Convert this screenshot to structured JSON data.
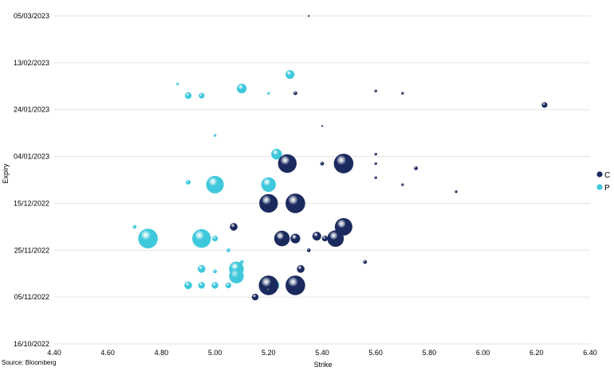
{
  "chart_data": {
    "type": "scatter",
    "variant": "bubble",
    "xlabel": "Strike",
    "ylabel": "Expiry",
    "source": "Source: Bloomberg",
    "xlim": [
      4.4,
      6.4
    ],
    "x_ticks": [
      "4.40",
      "4.60",
      "4.80",
      "5.00",
      "5.20",
      "5.40",
      "5.60",
      "5.80",
      "6.00",
      "6.20",
      "6.40"
    ],
    "ylim": [
      "2022-10-16",
      "2023-03-05"
    ],
    "y_ticks": [
      "16/10/2022",
      "05/11/2022",
      "25/11/2022",
      "15/12/2022",
      "04/01/2023",
      "24/01/2023",
      "13/02/2023",
      "05/03/2023"
    ],
    "grid": "horizontal",
    "legend_position": "right",
    "colors": {
      "C": "#1b2a5e",
      "P": "#3fc8dc",
      "grid": "#e3e3e3"
    },
    "series": [
      {
        "name": "C",
        "points": [
          {
            "x": 5.35,
            "y": "2023-03-05",
            "size": 1
          },
          {
            "x": 5.3,
            "y": "2023-01-31",
            "size": 3
          },
          {
            "x": 5.6,
            "y": "2023-02-01",
            "size": 2
          },
          {
            "x": 5.7,
            "y": "2023-01-31",
            "size": 2
          },
          {
            "x": 6.23,
            "y": "2023-01-26",
            "size": 5
          },
          {
            "x": 5.4,
            "y": "2023-01-17",
            "size": 1
          },
          {
            "x": 5.6,
            "y": "2023-01-05",
            "size": 2
          },
          {
            "x": 5.27,
            "y": "2023-01-01",
            "size": 18
          },
          {
            "x": 5.48,
            "y": "2023-01-01",
            "size": 19
          },
          {
            "x": 5.4,
            "y": "2023-01-01",
            "size": 3
          },
          {
            "x": 5.6,
            "y": "2023-01-01",
            "size": 2
          },
          {
            "x": 5.75,
            "y": "2022-12-30",
            "size": 3
          },
          {
            "x": 5.6,
            "y": "2022-12-26",
            "size": 2
          },
          {
            "x": 5.7,
            "y": "2022-12-23",
            "size": 2
          },
          {
            "x": 5.9,
            "y": "2022-12-20",
            "size": 2
          },
          {
            "x": 5.2,
            "y": "2022-12-15",
            "size": 18
          },
          {
            "x": 5.3,
            "y": "2022-12-15",
            "size": 19
          },
          {
            "x": 5.48,
            "y": "2022-12-05",
            "size": 17
          },
          {
            "x": 5.07,
            "y": "2022-12-05",
            "size": 7
          },
          {
            "x": 5.25,
            "y": "2022-11-30",
            "size": 15
          },
          {
            "x": 5.3,
            "y": "2022-11-30",
            "size": 9
          },
          {
            "x": 5.45,
            "y": "2022-11-30",
            "size": 16
          },
          {
            "x": 5.38,
            "y": "2022-12-01",
            "size": 8
          },
          {
            "x": 5.41,
            "y": "2022-11-30",
            "size": 5
          },
          {
            "x": 5.35,
            "y": "2022-11-25",
            "size": 3
          },
          {
            "x": 5.56,
            "y": "2022-11-20",
            "size": 3
          },
          {
            "x": 5.2,
            "y": "2022-11-10",
            "size": 19
          },
          {
            "x": 5.3,
            "y": "2022-11-10",
            "size": 19
          },
          {
            "x": 5.32,
            "y": "2022-11-17",
            "size": 7
          },
          {
            "x": 5.15,
            "y": "2022-11-05",
            "size": 6
          },
          {
            "x": 5.2,
            "y": "2022-11-08",
            "size": 3
          }
        ]
      },
      {
        "name": "P",
        "points": [
          {
            "x": 5.28,
            "y": "2023-02-08",
            "size": 8
          },
          {
            "x": 5.1,
            "y": "2023-02-02",
            "size": 9
          },
          {
            "x": 4.9,
            "y": "2023-01-30",
            "size": 6
          },
          {
            "x": 4.95,
            "y": "2023-01-30",
            "size": 5
          },
          {
            "x": 4.86,
            "y": "2023-02-04",
            "size": 2
          },
          {
            "x": 5.2,
            "y": "2023-01-31",
            "size": 2
          },
          {
            "x": 5.23,
            "y": "2023-01-05",
            "size": 10
          },
          {
            "x": 5.0,
            "y": "2023-01-13",
            "size": 2
          },
          {
            "x": 5.0,
            "y": "2022-12-23",
            "size": 17
          },
          {
            "x": 5.2,
            "y": "2022-12-23",
            "size": 14
          },
          {
            "x": 4.9,
            "y": "2022-12-24",
            "size": 4
          },
          {
            "x": 5.21,
            "y": "2022-12-15",
            "size": 10
          },
          {
            "x": 4.75,
            "y": "2022-11-30",
            "size": 19
          },
          {
            "x": 4.95,
            "y": "2022-11-30",
            "size": 18
          },
          {
            "x": 4.7,
            "y": "2022-12-05",
            "size": 3
          },
          {
            "x": 5.0,
            "y": "2022-11-30",
            "size": 5
          },
          {
            "x": 5.08,
            "y": "2022-11-17",
            "size": 14
          },
          {
            "x": 5.08,
            "y": "2022-11-14",
            "size": 14
          },
          {
            "x": 4.95,
            "y": "2022-11-17",
            "size": 7
          },
          {
            "x": 5.0,
            "y": "2022-11-16",
            "size": 3
          },
          {
            "x": 4.9,
            "y": "2022-11-10",
            "size": 7
          },
          {
            "x": 4.95,
            "y": "2022-11-10",
            "size": 6
          },
          {
            "x": 5.0,
            "y": "2022-11-10",
            "size": 6
          },
          {
            "x": 5.05,
            "y": "2022-11-10",
            "size": 5
          },
          {
            "x": 5.22,
            "y": "2022-11-10",
            "size": 10
          },
          {
            "x": 5.1,
            "y": "2022-11-20",
            "size": 3
          },
          {
            "x": 5.05,
            "y": "2022-11-25",
            "size": 3
          }
        ]
      }
    ]
  }
}
